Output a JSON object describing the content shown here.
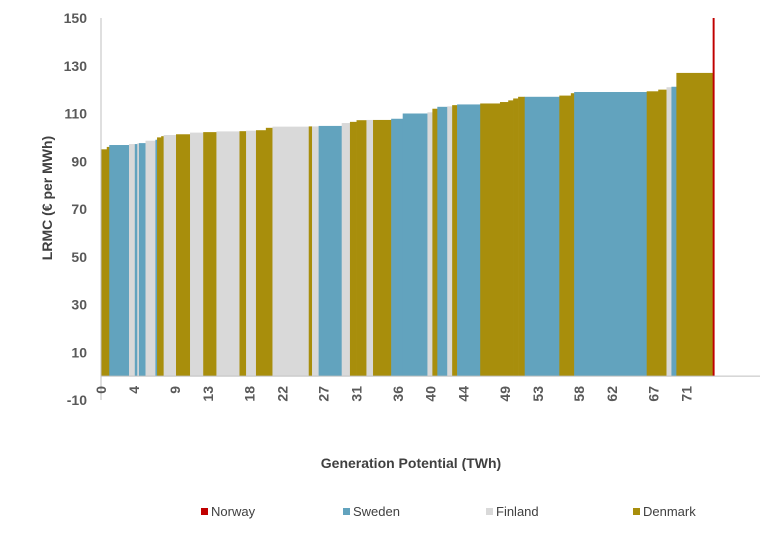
{
  "chart_data": {
    "type": "bar",
    "xlabel": "Generation Potential (TWh)",
    "ylabel": "LRMC (€ per MWh)",
    "ylim": [
      -10,
      150
    ],
    "yticks": [
      "150",
      "130",
      "110",
      "90",
      "70",
      "50",
      "30",
      "10",
      "-10"
    ],
    "xlim": [
      0,
      74
    ],
    "xticks": [
      "0",
      "4",
      "9",
      "13",
      "18",
      "22",
      "27",
      "31",
      "36",
      "40",
      "44",
      "49",
      "53",
      "58",
      "62",
      "67",
      "71"
    ],
    "grid": false,
    "legend_position": "bottom",
    "series": [
      {
        "name": "Norway",
        "color": "#C00000"
      },
      {
        "name": "Sweden",
        "color": "#62A3BE"
      },
      {
        "name": "Finland",
        "color": "#D9D9D9"
      },
      {
        "name": "Denmark",
        "color": "#A88E0C"
      }
    ],
    "segments": [
      {
        "country": "Denmark",
        "x0": 0.0,
        "x1": 0.7,
        "value": 95
      },
      {
        "country": "Denmark",
        "x0": 0.7,
        "x1": 1.0,
        "value": 96
      },
      {
        "country": "Sweden",
        "x0": 1.0,
        "x1": 3.4,
        "value": 96.8
      },
      {
        "country": "Finland",
        "x0": 3.4,
        "x1": 4.1,
        "value": 97.2
      },
      {
        "country": "Sweden",
        "x0": 4.1,
        "x1": 4.4,
        "value": 97.2
      },
      {
        "country": "Finland",
        "x0": 4.4,
        "x1": 4.6,
        "value": 97.5
      },
      {
        "country": "Sweden",
        "x0": 4.6,
        "x1": 5.4,
        "value": 97.6
      },
      {
        "country": "Finland",
        "x0": 5.4,
        "x1": 6.6,
        "value": 98.6
      },
      {
        "country": "Sweden",
        "x0": 6.6,
        "x1": 6.8,
        "value": 99
      },
      {
        "country": "Denmark",
        "x0": 6.8,
        "x1": 7.3,
        "value": 100
      },
      {
        "country": "Denmark",
        "x0": 7.3,
        "x1": 7.6,
        "value": 100.5
      },
      {
        "country": "Finland",
        "x0": 7.6,
        "x1": 9.1,
        "value": 101
      },
      {
        "country": "Denmark",
        "x0": 9.1,
        "x1": 10.8,
        "value": 101.3
      },
      {
        "country": "Finland",
        "x0": 10.8,
        "x1": 12.4,
        "value": 102
      },
      {
        "country": "Denmark",
        "x0": 12.4,
        "x1": 14.0,
        "value": 102.2
      },
      {
        "country": "Finland",
        "x0": 14.0,
        "x1": 16.8,
        "value": 102.5
      },
      {
        "country": "Denmark",
        "x0": 16.8,
        "x1": 17.6,
        "value": 102.6
      },
      {
        "country": "Finland",
        "x0": 17.6,
        "x1": 18.8,
        "value": 102.8
      },
      {
        "country": "Denmark",
        "x0": 18.8,
        "x1": 20.0,
        "value": 103
      },
      {
        "country": "Denmark",
        "x0": 20.0,
        "x1": 20.8,
        "value": 104
      },
      {
        "country": "Finland",
        "x0": 20.8,
        "x1": 25.2,
        "value": 104.5
      },
      {
        "country": "Denmark",
        "x0": 25.2,
        "x1": 25.6,
        "value": 104.6
      },
      {
        "country": "Finland",
        "x0": 25.6,
        "x1": 26.4,
        "value": 104.6
      },
      {
        "country": "Sweden",
        "x0": 26.4,
        "x1": 29.2,
        "value": 104.8
      },
      {
        "country": "Finland",
        "x0": 29.2,
        "x1": 30.2,
        "value": 106
      },
      {
        "country": "Denmark",
        "x0": 30.2,
        "x1": 31.0,
        "value": 106.5
      },
      {
        "country": "Denmark",
        "x0": 31.0,
        "x1": 32.2,
        "value": 107.2
      },
      {
        "country": "Finland",
        "x0": 32.2,
        "x1": 33.0,
        "value": 107.3
      },
      {
        "country": "Denmark",
        "x0": 33.0,
        "x1": 35.2,
        "value": 107.3
      },
      {
        "country": "Sweden",
        "x0": 35.2,
        "x1": 36.6,
        "value": 107.8
      },
      {
        "country": "Sweden",
        "x0": 36.6,
        "x1": 39.6,
        "value": 110
      },
      {
        "country": "Finland",
        "x0": 39.6,
        "x1": 40.2,
        "value": 110.5
      },
      {
        "country": "Denmark",
        "x0": 40.2,
        "x1": 40.8,
        "value": 112
      },
      {
        "country": "Sweden",
        "x0": 40.8,
        "x1": 42.0,
        "value": 112.8
      },
      {
        "country": "Finland",
        "x0": 42.0,
        "x1": 42.6,
        "value": 113
      },
      {
        "country": "Denmark",
        "x0": 42.6,
        "x1": 43.2,
        "value": 113.5
      },
      {
        "country": "Sweden",
        "x0": 43.2,
        "x1": 46.0,
        "value": 113.8
      },
      {
        "country": "Denmark",
        "x0": 46.0,
        "x1": 48.4,
        "value": 114.2
      },
      {
        "country": "Denmark",
        "x0": 48.4,
        "x1": 49.4,
        "value": 114.8
      },
      {
        "country": "Denmark",
        "x0": 49.4,
        "x1": 50.0,
        "value": 115.5
      },
      {
        "country": "Denmark",
        "x0": 50.0,
        "x1": 50.6,
        "value": 116.3
      },
      {
        "country": "Denmark",
        "x0": 50.6,
        "x1": 51.4,
        "value": 117
      },
      {
        "country": "Sweden",
        "x0": 51.4,
        "x1": 55.6,
        "value": 117
      },
      {
        "country": "Denmark",
        "x0": 55.6,
        "x1": 57.0,
        "value": 117.5
      },
      {
        "country": "Denmark",
        "x0": 57.0,
        "x1": 57.4,
        "value": 118.5
      },
      {
        "country": "Sweden",
        "x0": 57.4,
        "x1": 66.2,
        "value": 119
      },
      {
        "country": "Denmark",
        "x0": 66.2,
        "x1": 67.6,
        "value": 119.3
      },
      {
        "country": "Denmark",
        "x0": 67.6,
        "x1": 68.6,
        "value": 120
      },
      {
        "country": "Finland",
        "x0": 68.6,
        "x1": 69.2,
        "value": 121
      },
      {
        "country": "Sweden",
        "x0": 69.2,
        "x1": 69.8,
        "value": 121.2
      },
      {
        "country": "Denmark",
        "x0": 69.8,
        "x1": 74.2,
        "value": 127
      },
      {
        "country": "Norway",
        "x0": 74.2,
        "x1": 74.4,
        "value": 150
      }
    ]
  }
}
